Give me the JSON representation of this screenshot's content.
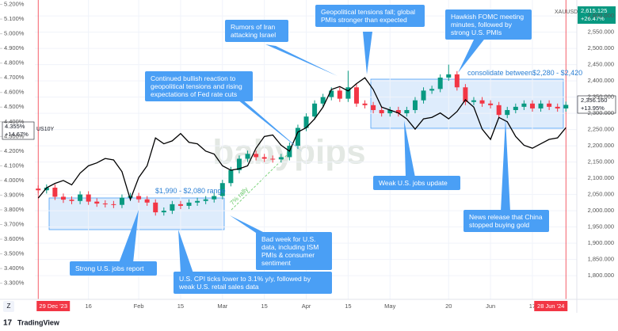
{
  "chart_data": {
    "type": "candlestick",
    "xlim": [
      -0.4,
      64.3
    ],
    "xticks": [
      {
        "value": 0,
        "label": "29 Dec '23"
      },
      {
        "value": 6,
        "label": "16"
      },
      {
        "value": 12,
        "label": "Feb"
      },
      {
        "value": 17,
        "label": "15"
      },
      {
        "value": 22,
        "label": "Mar"
      },
      {
        "value": 27,
        "label": "15"
      },
      {
        "value": 32,
        "label": "Apr"
      },
      {
        "value": 37,
        "label": "15"
      },
      {
        "value": 42,
        "label": "May"
      },
      {
        "value": 49,
        "label": "20"
      },
      {
        "value": 54,
        "label": "Jun"
      },
      {
        "value": 59,
        "label": "17"
      },
      {
        "value": 63,
        "label": "28 Jun '24"
      }
    ],
    "ylim": [
      1727,
      2649
    ],
    "yticks": [
      {
        "value": 1800,
        "label": "1,800.000"
      },
      {
        "value": 1850,
        "label": "1,850.000"
      },
      {
        "value": 1900,
        "label": "1,900.000"
      },
      {
        "value": 1950,
        "label": "1,950.000"
      },
      {
        "value": 2000,
        "label": "2,000.000"
      },
      {
        "value": 2050,
        "label": "2,050.000"
      },
      {
        "value": 2100,
        "label": "2,100.000"
      },
      {
        "value": 2150,
        "label": "2,150.000"
      },
      {
        "value": 2200,
        "label": "2,200.000"
      },
      {
        "value": 2250,
        "label": "2,250.000"
      },
      {
        "value": 2300,
        "label": "2,300.000"
      },
      {
        "value": 2350,
        "label": "2,350.000"
      },
      {
        "value": 2400,
        "label": "2,400.000"
      },
      {
        "value": 2450,
        "label": "2,450.000"
      },
      {
        "value": 2500,
        "label": "2,500.000"
      },
      {
        "value": 2550,
        "label": "2,550.000"
      },
      {
        "value": 2600,
        "label": "2,600.000"
      }
    ],
    "y2lim": [
      3.19,
      5.23
    ],
    "y2ticks": [
      {
        "value": 3.3,
        "label": "3.300%"
      },
      {
        "value": 3.4,
        "label": "3.400%"
      },
      {
        "value": 3.5,
        "label": "3.500%"
      },
      {
        "value": 3.6,
        "label": "3.600%"
      },
      {
        "value": 3.7,
        "label": "3.700%"
      },
      {
        "value": 3.8,
        "label": "3.800%"
      },
      {
        "value": 3.9,
        "label": "3.900%"
      },
      {
        "value": 4.0,
        "label": "4.000%"
      },
      {
        "value": 4.1,
        "label": "4.100%"
      },
      {
        "value": 4.2,
        "label": "4.200%"
      },
      {
        "value": 4.3,
        "label": "4.300%"
      },
      {
        "value": 4.4,
        "label": "4.400%"
      },
      {
        "value": 4.5,
        "label": "4.500%"
      },
      {
        "value": 4.6,
        "label": "4.600%"
      },
      {
        "value": 4.7,
        "label": "4.700%"
      },
      {
        "value": 4.8,
        "label": "4.800%"
      },
      {
        "value": 4.9,
        "label": "4.900%"
      },
      {
        "value": 5.0,
        "label": "5.000%"
      },
      {
        "value": 5.1,
        "label": "5.100%"
      },
      {
        "value": 5.2,
        "label": "5.200%"
      }
    ],
    "grid": true,
    "series": [
      {
        "name": "XAUUSD",
        "up_color": "#089981",
        "down_color": "#f23645",
        "open": [
          2068,
          2063,
          2071,
          2043,
          2034,
          2030,
          2050,
          2028,
          2022,
          2020,
          2018,
          2040,
          2045,
          2035,
          2025,
          1995,
          2000,
          2020,
          2015,
          2025,
          2030,
          2035,
          2045,
          2085,
          2125,
          2160,
          2175,
          2165,
          2160,
          2158,
          2165,
          2200,
          2255,
          2290,
          2330,
          2350,
          2370,
          2345,
          2380,
          2330,
          2325,
          2310,
          2300,
          2310,
          2300,
          2310,
          2340,
          2370,
          2375,
          2410,
          2420,
          2380,
          2335,
          2340,
          2330,
          2325,
          2295,
          2310,
          2320,
          2330,
          2315,
          2330,
          2320,
          2315
        ],
        "high": [
          2078,
          2081,
          2081,
          2053,
          2044,
          2060,
          2060,
          2038,
          2032,
          2030,
          2050,
          2055,
          2055,
          2045,
          2035,
          2010,
          2030,
          2030,
          2035,
          2040,
          2045,
          2055,
          2095,
          2135,
          2170,
          2185,
          2185,
          2175,
          2170,
          2175,
          2210,
          2265,
          2300,
          2340,
          2360,
          2380,
          2380,
          2431,
          2390,
          2340,
          2335,
          2320,
          2320,
          2320,
          2320,
          2350,
          2380,
          2385,
          2420,
          2450,
          2430,
          2390,
          2350,
          2350,
          2340,
          2335,
          2320,
          2330,
          2340,
          2340,
          2340,
          2340,
          2330,
          2336
        ],
        "low": [
          2053,
          2053,
          2033,
          2024,
          2020,
          2020,
          2018,
          2012,
          2010,
          2008,
          2008,
          2030,
          2025,
          2015,
          1985,
          1985,
          1990,
          2005,
          2005,
          2015,
          2020,
          2025,
          2035,
          2075,
          2115,
          2150,
          2155,
          2150,
          2148,
          2148,
          2155,
          2190,
          2245,
          2280,
          2320,
          2340,
          2335,
          2335,
          2320,
          2315,
          2300,
          2290,
          2290,
          2290,
          2290,
          2300,
          2330,
          2360,
          2365,
          2400,
          2370,
          2325,
          2325,
          2320,
          2315,
          2285,
          2285,
          2300,
          2310,
          2305,
          2305,
          2310,
          2305,
          2305
        ],
        "close": [
          2063,
          2071,
          2043,
          2034,
          2030,
          2050,
          2028,
          2022,
          2020,
          2018,
          2040,
          2045,
          2035,
          2025,
          1995,
          2000,
          2020,
          2015,
          2025,
          2030,
          2035,
          2045,
          2085,
          2125,
          2160,
          2175,
          2165,
          2160,
          2158,
          2165,
          2200,
          2255,
          2290,
          2330,
          2350,
          2370,
          2345,
          2380,
          2330,
          2325,
          2310,
          2300,
          2310,
          2300,
          2310,
          2340,
          2370,
          2375,
          2410,
          2420,
          2380,
          2335,
          2340,
          2330,
          2325,
          2295,
          2310,
          2320,
          2330,
          2315,
          2330,
          2320,
          2315,
          2326
        ]
      },
      {
        "name": "US10Y",
        "type": "line",
        "axis": "y2",
        "color": "#000000",
        "values": [
          3.88,
          3.95,
          3.98,
          4.0,
          3.97,
          4.05,
          4.1,
          4.12,
          4.15,
          4.14,
          4.06,
          3.87,
          4.02,
          4.1,
          4.29,
          4.25,
          4.27,
          4.32,
          4.26,
          4.25,
          4.2,
          4.18,
          4.1,
          4.07,
          4.08,
          4.1,
          4.22,
          4.3,
          4.31,
          4.24,
          4.2,
          4.33,
          4.36,
          4.42,
          4.5,
          4.62,
          4.64,
          4.61,
          4.66,
          4.7,
          4.62,
          4.5,
          4.48,
          4.46,
          4.42,
          4.35,
          4.42,
          4.43,
          4.46,
          4.42,
          4.47,
          4.55,
          4.5,
          4.35,
          4.28,
          4.43,
          4.4,
          4.3,
          4.24,
          4.22,
          4.25,
          4.28,
          4.29,
          4.36
        ]
      }
    ],
    "range_labels": [
      "$1,990 - $2,080 range",
      "consolidate between$2,280 - $2,420"
    ],
    "rally_label": "7% rally",
    "watermark": "babypips",
    "annotations": [
      "Strong U.S. jobs report",
      "U.S. CPI  ticks lower to 3.1% y/y, followed by weak U.S. retail sales data",
      "Bad week for U.S. data, including ISM PMIs & consumer sentiment",
      "Continued bullish reaction to geopolitical tensions and rising expectations of Fed rate cuts",
      "Rumors of Iran attacking Israel",
      "Geopolitical tensions fall; global PMIs stronger than expected",
      "Hawkish FOMC meeting minutes, followed by strong U.S. PMIs",
      "Weak U.S. jobs update",
      "News release that China stopped buying gold"
    ],
    "badges": {
      "symbol": "XAUUSD",
      "symbol_price": "2,615.125",
      "symbol_change": "+26.47%",
      "gold_price": "2,356.160",
      "gold_change": "+13.95%",
      "yield_price": "4.355%",
      "yield_change": "+14.67%",
      "yield_symbol": "US10Y"
    },
    "footer": {
      "brand": "TradingView",
      "scale_button": "Z"
    }
  }
}
